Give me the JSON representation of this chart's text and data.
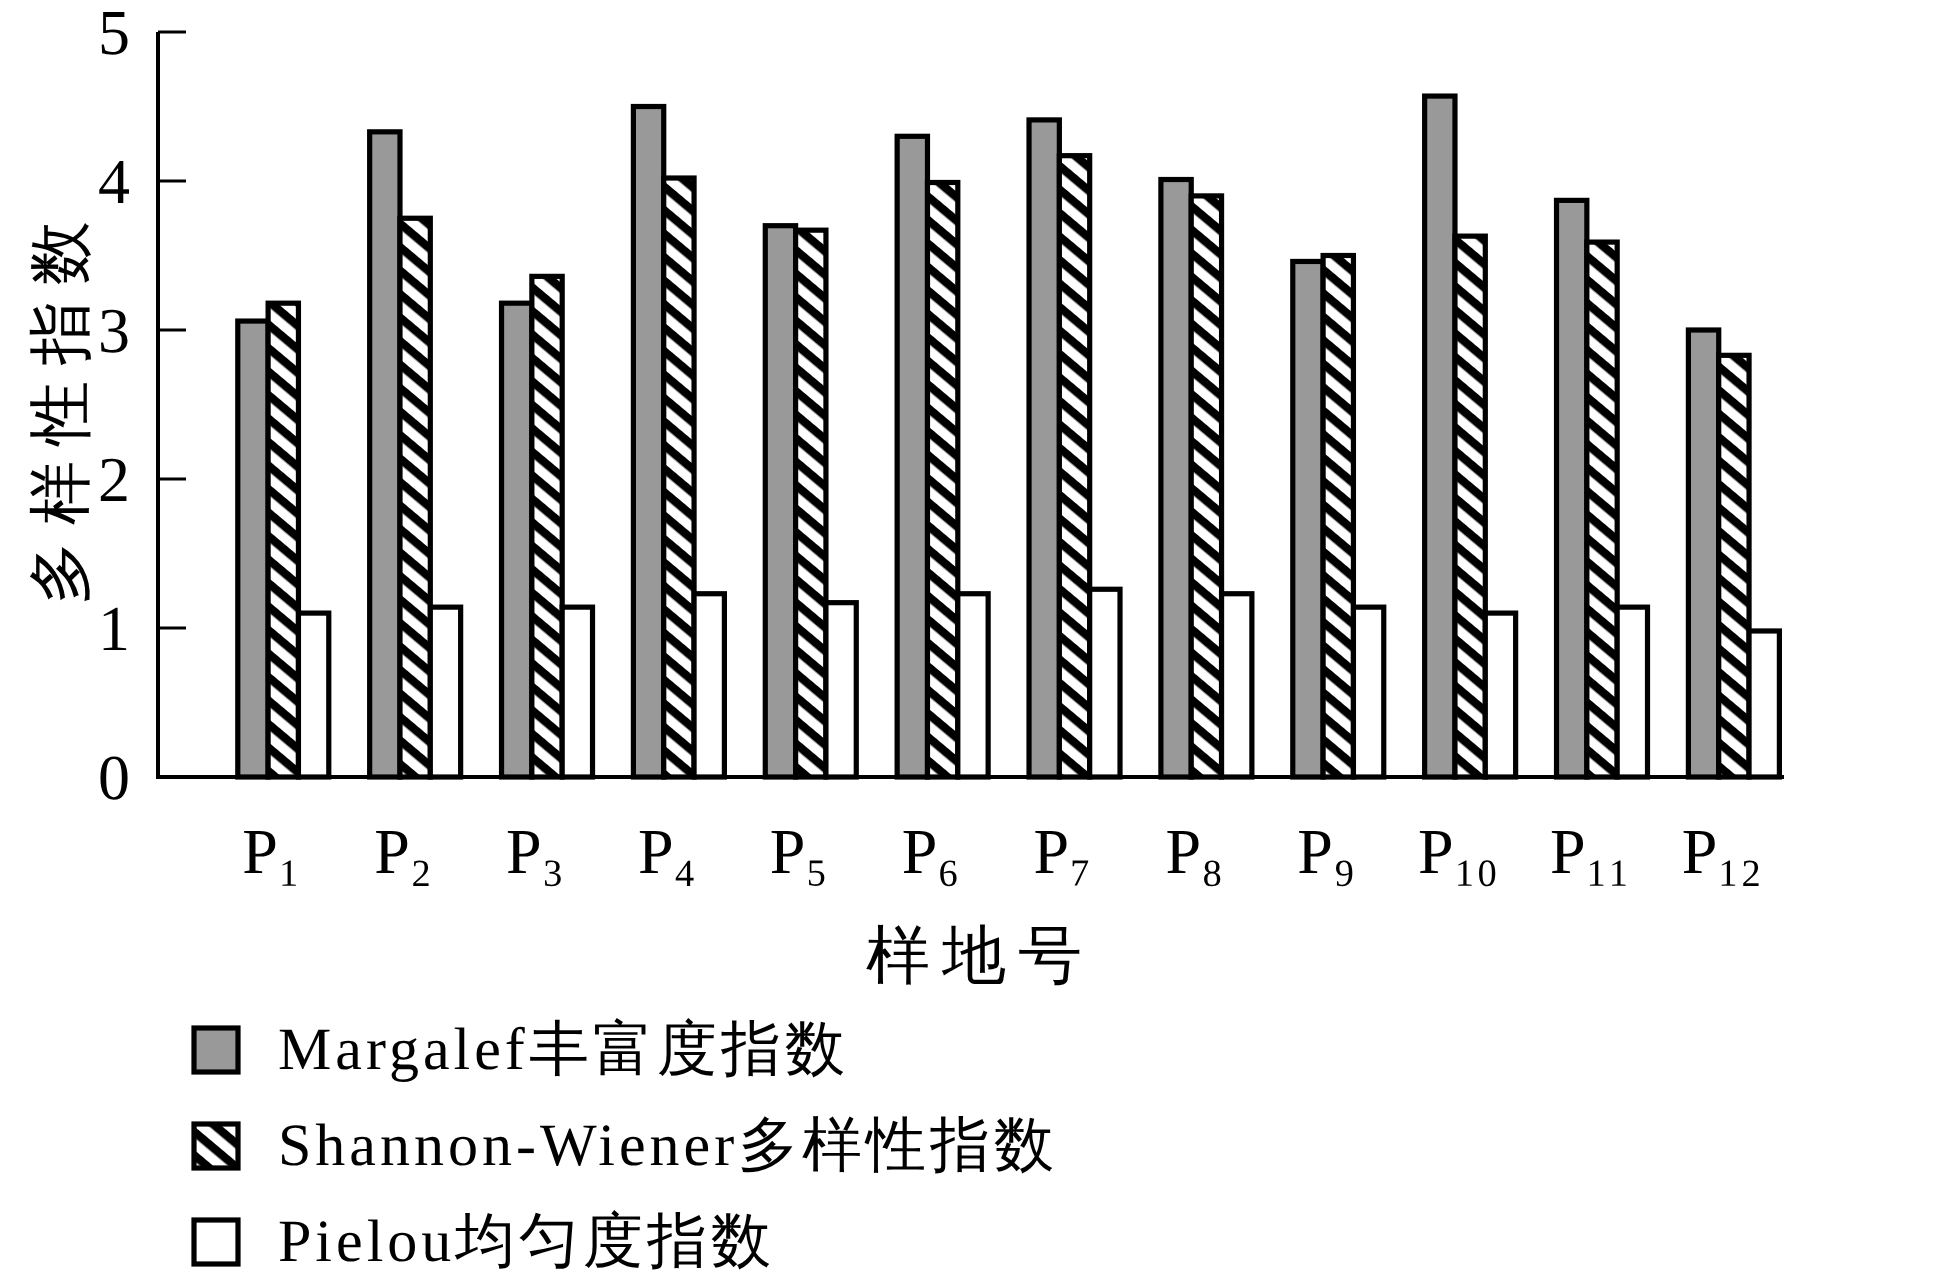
{
  "chart_data": {
    "type": "bar",
    "xlabel": "样地号",
    "ylabel": "多样性指数",
    "categories": [
      "P₁",
      "P₂",
      "P₃",
      "P₄",
      "P₅",
      "P₆",
      "P₇",
      "P₈",
      "P₉",
      "P₁₀",
      "P₁₁",
      "P₁₂"
    ],
    "series": [
      {
        "name": "Margalef丰富度指数",
        "color": "#999999",
        "values": [
          3.06,
          4.33,
          3.18,
          4.5,
          3.7,
          4.3,
          4.41,
          4.01,
          3.46,
          4.57,
          3.87,
          3.0
        ]
      },
      {
        "name": "Shannon-Wiener多样性指数",
        "color": "#000000",
        "values": [
          3.18,
          3.75,
          3.36,
          4.02,
          3.67,
          3.99,
          4.17,
          3.9,
          3.5,
          3.63,
          3.59,
          2.83
        ]
      },
      {
        "name": "Pielou均匀度指数",
        "color": "#ffffff",
        "values": [
          1.1,
          1.14,
          1.14,
          1.23,
          1.17,
          1.23,
          1.26,
          1.23,
          1.14,
          1.1,
          1.14,
          0.98
        ]
      }
    ],
    "ylim": [
      0,
      5
    ],
    "yticks": [
      0,
      1,
      2,
      3,
      4,
      5
    ],
    "grid": false,
    "legend": "bottom"
  }
}
